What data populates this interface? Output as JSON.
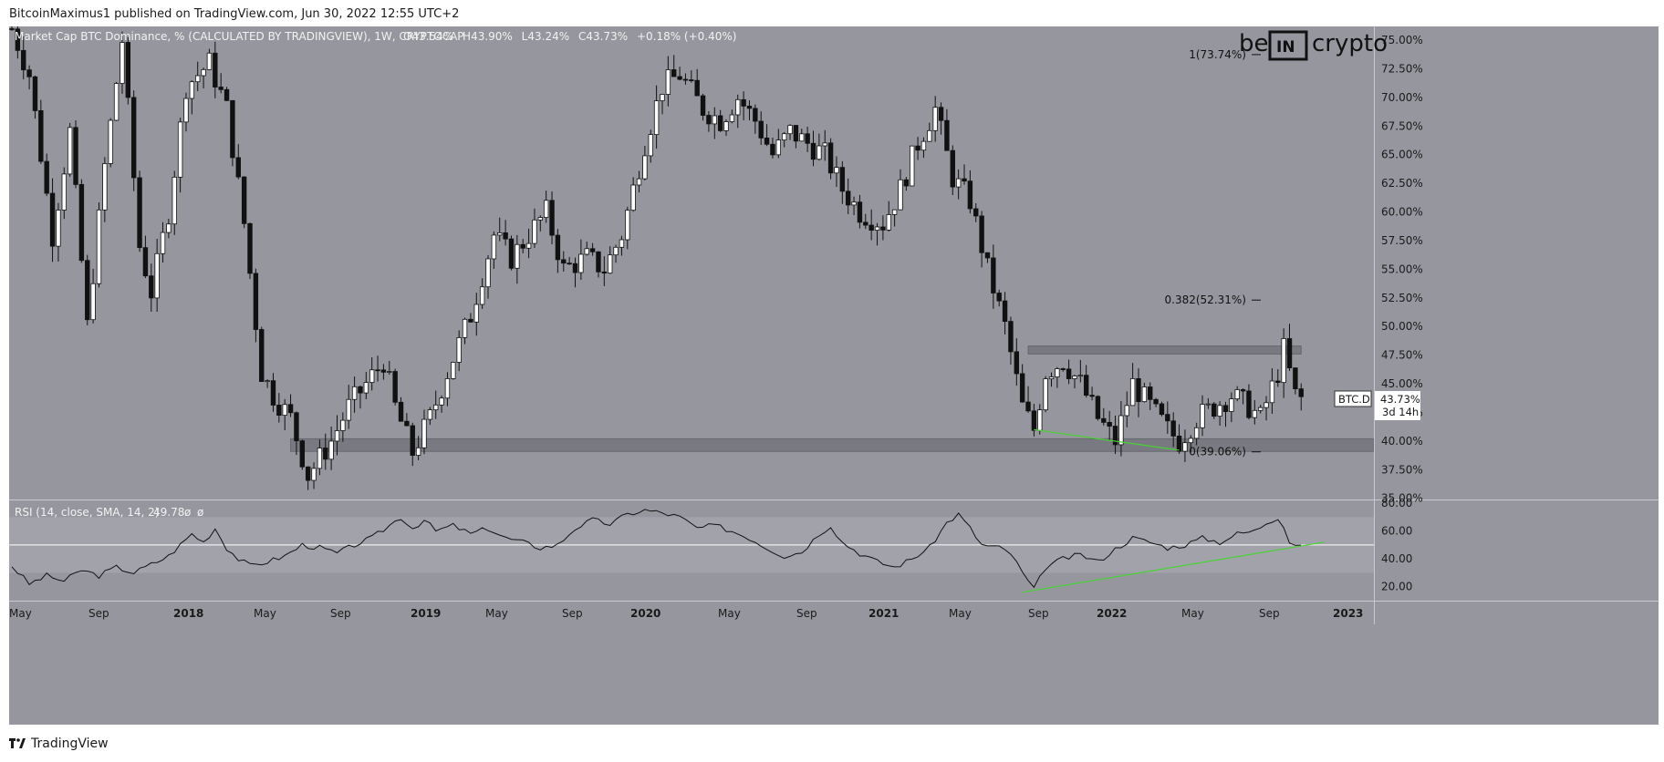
{
  "header": {
    "author": "BitcoinMaximus1",
    "published_text": "published on TradingView.com, Jun 30, 2022 12:55 UTC+2"
  },
  "legend": {
    "symbol": "Market Cap BTC Dominance, % (CALCULATED BY TRADINGVIEW), 1W, CRYPTOCAP",
    "o_label": "O",
    "o_value": "43.54%",
    "h_label": "H",
    "h_value": "43.90%",
    "l_label": "L",
    "l_value": "43.24%",
    "c_label": "C",
    "c_value": "43.73%",
    "change": "+0.18% (+0.40%)"
  },
  "rsi_legend": {
    "label": "RSI (14, close, SMA, 14, 2)",
    "value": "49.78",
    "extra1": "ø",
    "extra2": "ø"
  },
  "watermark": {
    "left": "be",
    "middle": "IN",
    "right": "crypto"
  },
  "price_tag": {
    "symbol": "BTC.D",
    "value": "43.73%",
    "countdown": "3d 14h"
  },
  "footer": {
    "brand": "TradingView"
  },
  "chart_data": {
    "type": "candlestick",
    "yaxis_main": {
      "ticks": [
        "75.00%",
        "72.50%",
        "70.00%",
        "67.50%",
        "65.00%",
        "62.50%",
        "60.00%",
        "57.50%",
        "55.00%",
        "52.50%",
        "50.00%",
        "47.50%",
        "45.00%",
        "42.50%",
        "40.00%",
        "37.50%",
        "35.00%"
      ],
      "ylim": [
        34.9,
        76.2
      ]
    },
    "yaxis_rsi": {
      "ticks": [
        "80.00",
        "60.00",
        "40.00",
        "20.00"
      ],
      "ylim": [
        10,
        82
      ],
      "band": [
        30,
        70
      ],
      "midline": 50
    },
    "xaxis": {
      "ticks": [
        "May",
        "Sep",
        "2018",
        "May",
        "Sep",
        "2019",
        "May",
        "Sep",
        "2020",
        "May",
        "Sep",
        "2021",
        "May",
        "Sep",
        "2022",
        "May",
        "Sep",
        "2023"
      ]
    },
    "fib_levels": [
      {
        "label": "1(73.74%)",
        "value": 73.74
      },
      {
        "label": "0.382(52.31%)",
        "value": 52.31
      },
      {
        "label": "0(39.06%)",
        "value": 39.06
      }
    ],
    "zones": [
      {
        "name": "resistance",
        "from": 47.6,
        "to": 48.3
      },
      {
        "name": "support",
        "from": 39.1,
        "to": 40.2
      }
    ],
    "close_path": [
      [
        0,
        76
      ],
      [
        3,
        72
      ],
      [
        7,
        58
      ],
      [
        10,
        67
      ],
      [
        13,
        50
      ],
      [
        16,
        64
      ],
      [
        19,
        75
      ],
      [
        22,
        57
      ],
      [
        24,
        53
      ],
      [
        27,
        60
      ],
      [
        30,
        71
      ],
      [
        34,
        73
      ],
      [
        37,
        69
      ],
      [
        40,
        59
      ],
      [
        43,
        46
      ],
      [
        45,
        44
      ],
      [
        48,
        42
      ],
      [
        51,
        37
      ],
      [
        55,
        40
      ],
      [
        58,
        43
      ],
      [
        61,
        45
      ],
      [
        64,
        47
      ],
      [
        66,
        43
      ],
      [
        69,
        39
      ],
      [
        72,
        42
      ],
      [
        75,
        46
      ],
      [
        79,
        51
      ],
      [
        83,
        58
      ],
      [
        86,
        56
      ],
      [
        89,
        58
      ],
      [
        92,
        60
      ],
      [
        95,
        55
      ],
      [
        99,
        56
      ],
      [
        102,
        55
      ],
      [
        105,
        58
      ],
      [
        109,
        66
      ],
      [
        112,
        71
      ],
      [
        115,
        72
      ],
      [
        119,
        69
      ],
      [
        122,
        68
      ],
      [
        125,
        70
      ],
      [
        128,
        68
      ],
      [
        131,
        65
      ],
      [
        134,
        67
      ],
      [
        137,
        66
      ],
      [
        140,
        65
      ],
      [
        143,
        62
      ],
      [
        146,
        60
      ],
      [
        150,
        59
      ],
      [
        153,
        62
      ],
      [
        156,
        66
      ],
      [
        159,
        69
      ],
      [
        162,
        63
      ],
      [
        165,
        61
      ],
      [
        168,
        55
      ],
      [
        171,
        50
      ],
      [
        174,
        43
      ],
      [
        176,
        41
      ],
      [
        178,
        46
      ],
      [
        181,
        47
      ],
      [
        184,
        45
      ],
      [
        187,
        42
      ],
      [
        190,
        40
      ],
      [
        193,
        45
      ],
      [
        196,
        43
      ],
      [
        199,
        41
      ],
      [
        201,
        40
      ],
      [
        204,
        42
      ],
      [
        207,
        43
      ],
      [
        210,
        44
      ],
      [
        213,
        43
      ],
      [
        215,
        42
      ],
      [
        218,
        46
      ],
      [
        219,
        48
      ],
      [
        221,
        44
      ],
      [
        222,
        43.7
      ]
    ],
    "series": [
      {
        "name": "RSI",
        "values": [
          [
            0,
            35
          ],
          [
            3,
            22
          ],
          [
            6,
            28
          ],
          [
            9,
            24
          ],
          [
            12,
            32
          ],
          [
            15,
            28
          ],
          [
            18,
            34
          ],
          [
            21,
            30
          ],
          [
            24,
            36
          ],
          [
            27,
            42
          ],
          [
            29,
            50
          ],
          [
            31,
            58
          ],
          [
            33,
            52
          ],
          [
            35,
            62
          ],
          [
            37,
            48
          ],
          [
            39,
            40
          ],
          [
            41,
            35
          ],
          [
            44,
            38
          ],
          [
            47,
            42
          ],
          [
            50,
            50
          ],
          [
            53,
            48
          ],
          [
            56,
            44
          ],
          [
            59,
            50
          ],
          [
            62,
            55
          ],
          [
            65,
            64
          ],
          [
            67,
            70
          ],
          [
            69,
            62
          ],
          [
            71,
            68
          ],
          [
            73,
            60
          ],
          [
            76,
            64
          ],
          [
            79,
            58
          ],
          [
            82,
            62
          ],
          [
            85,
            55
          ],
          [
            88,
            52
          ],
          [
            91,
            48
          ],
          [
            94,
            50
          ],
          [
            97,
            62
          ],
          [
            100,
            68
          ],
          [
            103,
            65
          ],
          [
            106,
            72
          ],
          [
            109,
            75
          ],
          [
            112,
            73
          ],
          [
            115,
            70
          ],
          [
            118,
            62
          ],
          [
            121,
            64
          ],
          [
            124,
            60
          ],
          [
            127,
            55
          ],
          [
            130,
            48
          ],
          [
            133,
            42
          ],
          [
            136,
            45
          ],
          [
            139,
            58
          ],
          [
            141,
            64
          ],
          [
            143,
            52
          ],
          [
            146,
            44
          ],
          [
            149,
            38
          ],
          [
            152,
            34
          ],
          [
            155,
            40
          ],
          [
            158,
            48
          ],
          [
            161,
            66
          ],
          [
            163,
            72
          ],
          [
            165,
            62
          ],
          [
            167,
            50
          ],
          [
            170,
            48
          ],
          [
            172,
            44
          ],
          [
            174,
            30
          ],
          [
            176,
            18
          ],
          [
            178,
            34
          ],
          [
            181,
            40
          ],
          [
            184,
            43
          ],
          [
            187,
            38
          ],
          [
            190,
            47
          ],
          [
            193,
            55
          ],
          [
            196,
            52
          ],
          [
            199,
            48
          ],
          [
            202,
            50
          ],
          [
            205,
            55
          ],
          [
            208,
            52
          ],
          [
            211,
            58
          ],
          [
            214,
            60
          ],
          [
            216,
            66
          ],
          [
            218,
            70
          ],
          [
            219,
            64
          ],
          [
            220,
            52
          ],
          [
            222,
            49.78
          ]
        ]
      }
    ]
  }
}
